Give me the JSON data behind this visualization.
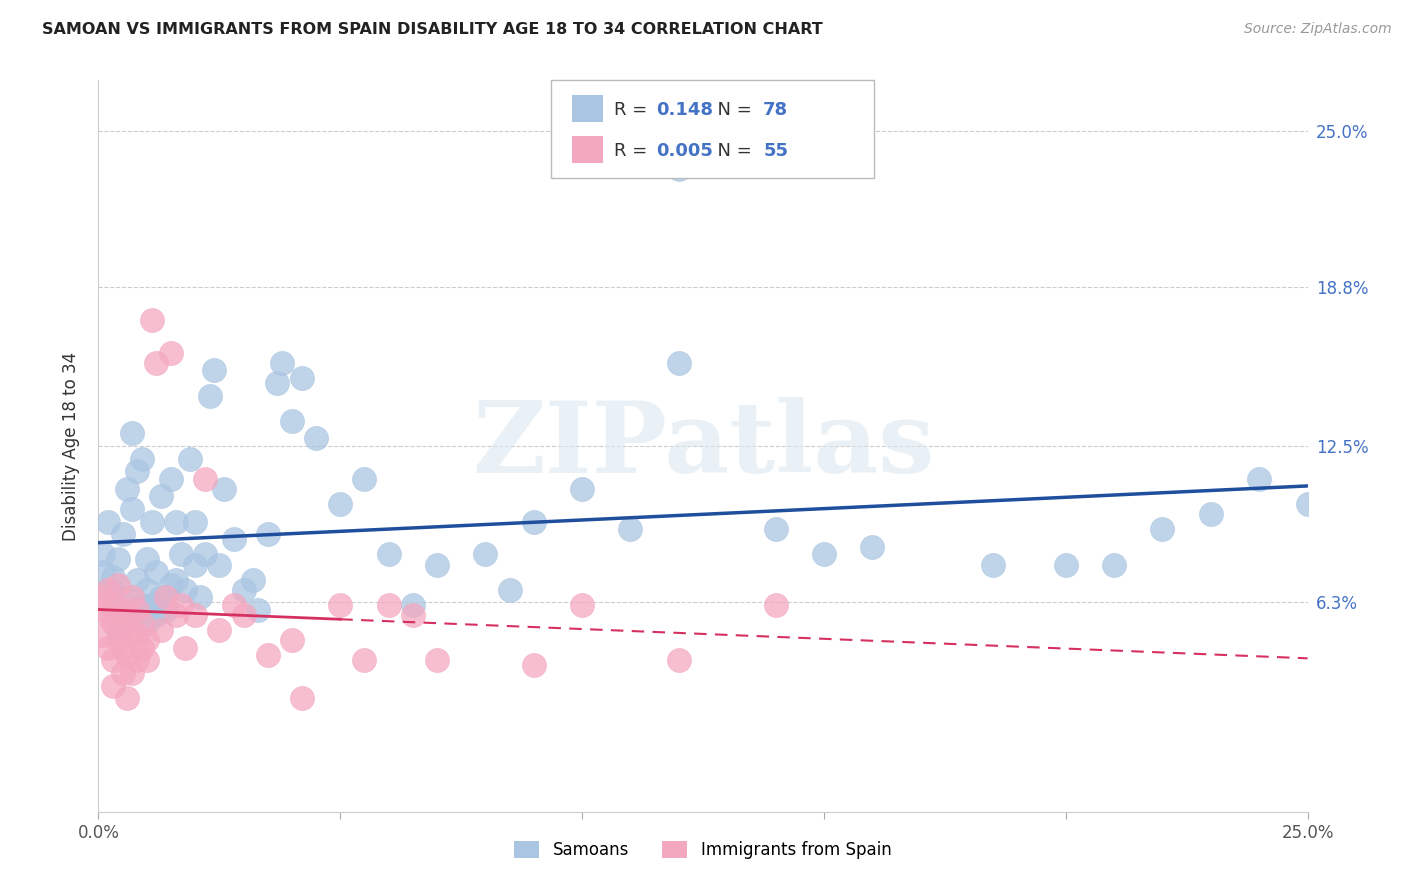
{
  "title": "SAMOAN VS IMMIGRANTS FROM SPAIN DISABILITY AGE 18 TO 34 CORRELATION CHART",
  "source": "Source: ZipAtlas.com",
  "ylabel": "Disability Age 18 to 34",
  "xlim": [
    0.0,
    0.25
  ],
  "ylim": [
    -0.02,
    0.27
  ],
  "plot_ylim": [
    -0.02,
    0.27
  ],
  "xticks": [
    0.0,
    0.05,
    0.1,
    0.15,
    0.2,
    0.25
  ],
  "xticklabels": [
    "0.0%",
    "",
    "",
    "",
    "",
    "25.0%"
  ],
  "yticks": [
    0.063,
    0.125,
    0.188,
    0.25
  ],
  "ytick_labels_right": [
    "6.3%",
    "12.5%",
    "18.8%",
    "25.0%"
  ],
  "blue_color": "#aac5e2",
  "pink_color": "#f4a8c0",
  "blue_line_color": "#1f4e9c",
  "pink_line_color": "#d63060",
  "R_blue": 0.148,
  "N_blue": 78,
  "R_pink": 0.005,
  "N_pink": 55,
  "legend_label_blue": "Samoans",
  "legend_label_pink": "Immigrants from Spain",
  "watermark": "ZIPatlas",
  "blue_points_x": [
    0.001,
    0.001,
    0.002,
    0.002,
    0.003,
    0.003,
    0.003,
    0.004,
    0.004,
    0.005,
    0.005,
    0.005,
    0.006,
    0.006,
    0.007,
    0.007,
    0.007,
    0.008,
    0.008,
    0.009,
    0.009,
    0.01,
    0.01,
    0.01,
    0.011,
    0.011,
    0.012,
    0.012,
    0.013,
    0.013,
    0.014,
    0.015,
    0.015,
    0.016,
    0.016,
    0.017,
    0.018,
    0.019,
    0.02,
    0.02,
    0.021,
    0.022,
    0.023,
    0.024,
    0.025,
    0.026,
    0.028,
    0.03,
    0.032,
    0.033,
    0.035,
    0.037,
    0.038,
    0.04,
    0.042,
    0.045,
    0.05,
    0.055,
    0.06,
    0.065,
    0.07,
    0.08,
    0.085,
    0.09,
    0.1,
    0.11,
    0.12,
    0.14,
    0.15,
    0.16,
    0.185,
    0.2,
    0.21,
    0.22,
    0.23,
    0.24,
    0.25,
    0.12
  ],
  "blue_points_y": [
    0.075,
    0.082,
    0.068,
    0.095,
    0.06,
    0.073,
    0.068,
    0.052,
    0.08,
    0.06,
    0.065,
    0.09,
    0.055,
    0.108,
    0.1,
    0.058,
    0.13,
    0.115,
    0.072,
    0.062,
    0.12,
    0.055,
    0.068,
    0.08,
    0.095,
    0.062,
    0.058,
    0.075,
    0.105,
    0.065,
    0.06,
    0.112,
    0.07,
    0.095,
    0.072,
    0.082,
    0.068,
    0.12,
    0.078,
    0.095,
    0.065,
    0.082,
    0.145,
    0.155,
    0.078,
    0.108,
    0.088,
    0.068,
    0.072,
    0.06,
    0.09,
    0.15,
    0.158,
    0.135,
    0.152,
    0.128,
    0.102,
    0.112,
    0.082,
    0.062,
    0.078,
    0.082,
    0.068,
    0.095,
    0.108,
    0.092,
    0.235,
    0.092,
    0.082,
    0.085,
    0.078,
    0.078,
    0.078,
    0.092,
    0.098,
    0.112,
    0.102,
    0.158
  ],
  "pink_points_x": [
    0.001,
    0.001,
    0.001,
    0.002,
    0.002,
    0.002,
    0.003,
    0.003,
    0.003,
    0.003,
    0.004,
    0.004,
    0.004,
    0.005,
    0.005,
    0.005,
    0.005,
    0.006,
    0.006,
    0.006,
    0.007,
    0.007,
    0.007,
    0.008,
    0.008,
    0.008,
    0.009,
    0.009,
    0.01,
    0.01,
    0.011,
    0.012,
    0.013,
    0.014,
    0.015,
    0.016,
    0.017,
    0.018,
    0.02,
    0.022,
    0.025,
    0.028,
    0.03,
    0.035,
    0.04,
    0.042,
    0.05,
    0.055,
    0.06,
    0.065,
    0.07,
    0.09,
    0.1,
    0.12,
    0.14
  ],
  "pink_points_y": [
    0.06,
    0.05,
    0.065,
    0.058,
    0.045,
    0.068,
    0.055,
    0.04,
    0.062,
    0.03,
    0.048,
    0.058,
    0.07,
    0.045,
    0.06,
    0.052,
    0.035,
    0.042,
    0.058,
    0.025,
    0.05,
    0.065,
    0.035,
    0.06,
    0.05,
    0.04,
    0.045,
    0.055,
    0.048,
    0.04,
    0.175,
    0.158,
    0.052,
    0.065,
    0.162,
    0.058,
    0.062,
    0.045,
    0.058,
    0.112,
    0.052,
    0.062,
    0.058,
    0.042,
    0.048,
    0.025,
    0.062,
    0.04,
    0.062,
    0.058,
    0.04,
    0.038,
    0.062,
    0.04,
    0.062
  ]
}
